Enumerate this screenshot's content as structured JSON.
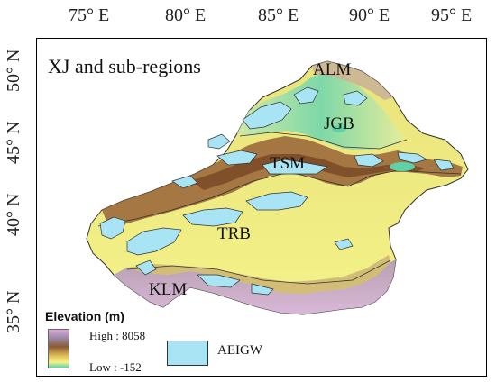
{
  "longitude_labels": [
    "75° E",
    "80° E",
    "85° E",
    "90° E",
    "95° E"
  ],
  "latitude_labels": [
    "50° N",
    "45° N",
    "40° N",
    "35° N"
  ],
  "title": "XJ and sub-regions",
  "regions": [
    "ALM",
    "JGB",
    "TSM",
    "TRB",
    "KLM"
  ],
  "legend": {
    "title": "Elevation (m)",
    "high": "High : 8058",
    "low": "Low : -152",
    "groundwater_label": "AEIGW"
  },
  "colors": {
    "low_elev": "#5fd2a8",
    "plain": "#f4f28a",
    "mid": "#e2c35a",
    "mountain": "#8a5a34",
    "high": "#d9a6d6",
    "groundwater": "#a8e4f4"
  }
}
